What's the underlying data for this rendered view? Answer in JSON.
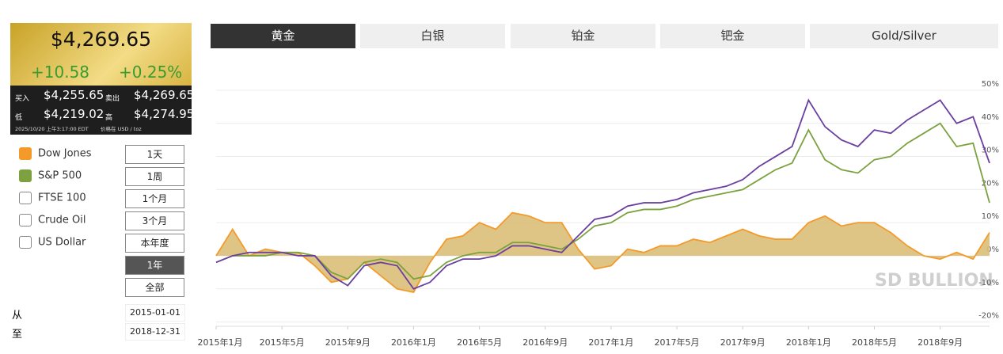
{
  "price_panel": {
    "price": "$4,269.65",
    "change": "+10.58",
    "change_pct": "+0.25%",
    "bid_label": "买入",
    "bid": "$4,255.65",
    "ask_label": "卖出",
    "ask": "$4,269.65",
    "low_label": "低",
    "low": "$4,219.02",
    "high_label": "高",
    "high": "$4,274.95",
    "timestamp": "2025/10/20 上午3:17:00 EDT",
    "unit": "价格在 USD / toz"
  },
  "tabs": [
    "黄金",
    "白银",
    "铂金",
    "钯金",
    "Gold/Silver"
  ],
  "active_tab": 0,
  "legend": [
    {
      "label": "Dow Jones",
      "color": "#f39a2b",
      "checked": true
    },
    {
      "label": "S&P 500",
      "color": "#7ba23f",
      "checked": true
    },
    {
      "label": "FTSE 100",
      "checked": false
    },
    {
      "label": "Crude Oil",
      "checked": false
    },
    {
      "label": "US Dollar",
      "checked": false
    }
  ],
  "periods": [
    "1天",
    "1周",
    "1个月",
    "3个月",
    "本年度",
    "1年",
    "全部"
  ],
  "active_period": 5,
  "range": {
    "from_label": "从",
    "from": "2015-01-01",
    "to_label": "至",
    "to": "2018-12-31"
  },
  "watermark": "SD BULLION",
  "chart_data": {
    "type": "line",
    "x": [
      "2015-01",
      "2015-02",
      "2015-03",
      "2015-04",
      "2015-05",
      "2015-06",
      "2015-07",
      "2015-08",
      "2015-09",
      "2015-10",
      "2015-11",
      "2015-12",
      "2016-01",
      "2016-02",
      "2016-03",
      "2016-04",
      "2016-05",
      "2016-06",
      "2016-07",
      "2016-08",
      "2016-09",
      "2016-10",
      "2016-11",
      "2016-12",
      "2017-01",
      "2017-02",
      "2017-03",
      "2017-04",
      "2017-05",
      "2017-06",
      "2017-07",
      "2017-08",
      "2017-09",
      "2017-10",
      "2017-11",
      "2017-12",
      "2018-01",
      "2018-02",
      "2018-03",
      "2018-04",
      "2018-05",
      "2018-06",
      "2018-07",
      "2018-08",
      "2018-09",
      "2018-10",
      "2018-11",
      "2018-12"
    ],
    "series": [
      {
        "color": "#f39a2b",
        "fill": "#dcbf78",
        "values": [
          0,
          8,
          0,
          2,
          1,
          1,
          -3,
          -8,
          -7,
          -2,
          -6,
          -10,
          -11,
          -2,
          5,
          6,
          10,
          8,
          13,
          12,
          10,
          10,
          2,
          -4,
          -3,
          2,
          1,
          3,
          3,
          5,
          4,
          6,
          8,
          6,
          5,
          5,
          10,
          12,
          9,
          10,
          10,
          7,
          3,
          0,
          -1,
          1,
          -1,
          7
        ]
      },
      {
        "color": "#7ba23f",
        "values": [
          -2,
          0,
          0,
          0,
          1,
          1,
          0,
          -5,
          -7,
          -2,
          -1,
          -2,
          -7,
          -6,
          -2,
          0,
          1,
          1,
          4,
          4,
          3,
          2,
          5,
          9,
          10,
          13,
          14,
          14,
          15,
          17,
          18,
          19,
          20,
          23,
          26,
          28,
          38,
          29,
          26,
          25,
          29,
          30,
          34,
          37,
          40,
          33,
          34,
          16
        ]
      },
      {
        "color": "#6a3fa0",
        "values": [
          -2,
          0,
          1,
          1,
          1,
          0,
          0,
          -6,
          -9,
          -3,
          -2,
          -3,
          -10,
          -8,
          -3,
          -1,
          -1,
          0,
          3,
          3,
          2,
          1,
          6,
          11,
          12,
          15,
          16,
          16,
          17,
          19,
          20,
          21,
          23,
          27,
          30,
          33,
          47,
          39,
          35,
          33,
          38,
          37,
          41,
          44,
          47,
          40,
          42,
          28
        ]
      }
    ],
    "xlim": [
      "2015-01",
      "2018-12"
    ],
    "xticks": [
      {
        "value": "2015-01",
        "label": "2015年1月"
      },
      {
        "value": "2015-05",
        "label": "2015年5月"
      },
      {
        "value": "2015-09",
        "label": "2015年9月"
      },
      {
        "value": "2016-01",
        "label": "2016年1月"
      },
      {
        "value": "2016-05",
        "label": "2016年5月"
      },
      {
        "value": "2016-09",
        "label": "2016年9月"
      },
      {
        "value": "2017-01",
        "label": "2017年1月"
      },
      {
        "value": "2017-05",
        "label": "2017年5月"
      },
      {
        "value": "2017-09",
        "label": "2017年9月"
      },
      {
        "value": "2018-01",
        "label": "2018年1月"
      },
      {
        "value": "2018-05",
        "label": "2018年5月"
      },
      {
        "value": "2018-09",
        "label": "2018年9月"
      }
    ],
    "ylim": [
      -21.3,
      58.6
    ],
    "yticks": [
      {
        "value": 50,
        "label": "50%"
      },
      {
        "value": 40,
        "label": "40%"
      },
      {
        "value": 30,
        "label": "30%"
      },
      {
        "value": 20,
        "label": "20%"
      },
      {
        "value": 10,
        "label": "10%"
      },
      {
        "value": 0,
        "label": "0%"
      },
      {
        "value": -10,
        "label": "-10%"
      },
      {
        "value": -20,
        "label": "-20%"
      }
    ],
    "grid": true
  }
}
